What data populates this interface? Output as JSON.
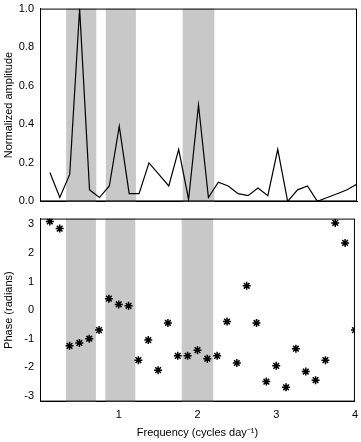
{
  "chart_data": [
    {
      "type": "line",
      "ylabel": "Normalized amplitude",
      "x": [
        0.125,
        0.25,
        0.375,
        0.5,
        0.625,
        0.75,
        0.875,
        1.0,
        1.125,
        1.25,
        1.375,
        1.5,
        1.625,
        1.75,
        1.875,
        2.0,
        2.125,
        2.25,
        2.375,
        2.5,
        2.625,
        2.75,
        2.875,
        3.0,
        3.125,
        3.25,
        3.375,
        3.5,
        3.625,
        3.75,
        3.875,
        4.0
      ],
      "values": [
        0.15,
        0.02,
        0.14,
        1.0,
        0.06,
        0.02,
        0.08,
        0.39,
        0.04,
        0.04,
        0.2,
        0.14,
        0.08,
        0.27,
        0.01,
        0.5,
        0.02,
        0.1,
        0.08,
        0.04,
        0.03,
        0.07,
        0.03,
        0.27,
        0.0,
        0.06,
        0.08,
        0.0,
        0.02,
        0.04,
        0.06,
        0.09
      ],
      "color": "#000000",
      "line_style": "solid",
      "xlim": [
        0,
        4
      ],
      "xticks": [
        1,
        2,
        3,
        4
      ],
      "ylim": [
        0,
        1
      ],
      "yticks": [
        {
          "value": 0,
          "label": "0.0"
        },
        {
          "value": 0.2,
          "label": "0.2"
        },
        {
          "value": 0.4,
          "label": "0.4"
        },
        {
          "value": 0.6,
          "label": "0.6"
        },
        {
          "value": 0.8,
          "label": "0.8"
        },
        {
          "value": 1,
          "label": "1.0"
        }
      ],
      "tick_labels": "y",
      "shaded_bands": [
        [
          0.33,
          0.71
        ],
        [
          0.83,
          1.21
        ],
        [
          1.8,
          2.2
        ]
      ],
      "band_color": "#c8c8c8",
      "grid": false
    },
    {
      "type": "scatter",
      "xlabel": "Frequency (cycles day⁻¹)",
      "ylabel": "Phase (radians)",
      "x": [
        0.125,
        0.25,
        0.375,
        0.5,
        0.625,
        0.75,
        0.875,
        1.0,
        1.125,
        1.25,
        1.375,
        1.5,
        1.625,
        1.75,
        1.875,
        2.0,
        2.125,
        2.25,
        2.375,
        2.5,
        2.625,
        2.75,
        2.875,
        3.0,
        3.125,
        3.25,
        3.375,
        3.5,
        3.625,
        3.75,
        3.875,
        4.0
      ],
      "values": [
        3.1,
        2.85,
        -1.25,
        -1.15,
        -1.0,
        -0.7,
        0.4,
        0.2,
        0.15,
        -1.75,
        -1.05,
        -2.1,
        -0.45,
        -1.6,
        -1.6,
        -1.4,
        -1.7,
        -1.6,
        -0.4,
        -1.85,
        0.85,
        -0.45,
        -2.5,
        -1.95,
        -2.7,
        -1.35,
        -2.15,
        -2.45,
        -1.75,
        3.05,
        2.35,
        -0.7
      ],
      "color": "#000000",
      "marker": "star",
      "xlim": [
        0,
        4
      ],
      "xticks": [
        1,
        2,
        3,
        4
      ],
      "ylim": [
        -3.2,
        3.2
      ],
      "yticks": [
        -3,
        -2,
        -1,
        0,
        1,
        2,
        3
      ],
      "shaded_bands": [
        [
          0.33,
          0.71
        ],
        [
          0.83,
          1.21
        ],
        [
          1.8,
          2.2
        ]
      ],
      "band_color": "#c8c8c8",
      "grid": false
    }
  ]
}
